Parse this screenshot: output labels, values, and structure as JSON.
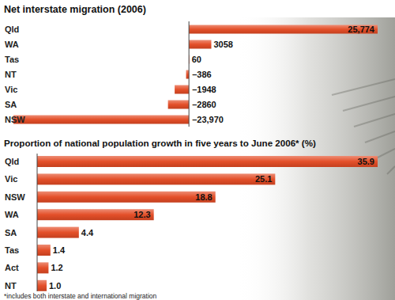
{
  "chart_data": [
    {
      "type": "bar",
      "orientation": "horizontal",
      "title": "Net interstate migration (2006)",
      "categories": [
        "Qld",
        "WA",
        "Tas",
        "NT",
        "Vic",
        "SA",
        "NSW"
      ],
      "values": [
        25774,
        3058,
        60,
        -386,
        -1948,
        -2860,
        -23970
      ],
      "value_labels": [
        "25,774",
        "3058",
        "60",
        "–386",
        "–1948",
        "–2860",
        "–23,970"
      ],
      "color": "#e4502a",
      "xlim": [
        -23970,
        25774
      ],
      "data_labels": true,
      "tick_labels": false,
      "grid": false
    },
    {
      "type": "bar",
      "orientation": "horizontal",
      "title": "Proportion of national population growth in five years to June 2006* (%)",
      "categories": [
        "Qld",
        "Vic",
        "NSW",
        "WA",
        "SA",
        "Tas",
        "Act",
        "NT"
      ],
      "values": [
        35.9,
        25.1,
        18.8,
        12.3,
        4.4,
        1.4,
        1.2,
        1.0
      ],
      "value_labels": [
        "35.9",
        "25.1",
        "18.8",
        "12.3",
        "4.4",
        "1.4",
        "1.2",
        "1.0"
      ],
      "color": "#e4502a",
      "xlim": [
        0,
        35.9
      ],
      "data_labels": true,
      "tick_labels": false,
      "grid": false,
      "annotations": [
        "*includes both interstate and international migration"
      ]
    }
  ]
}
